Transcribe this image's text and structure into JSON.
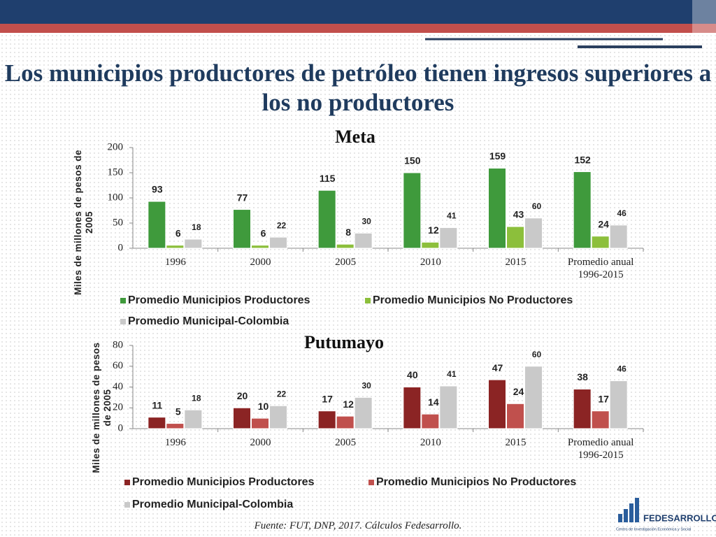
{
  "title": "Los municipios productores de petróleo tienen ingresos superiores a los no productores",
  "source": "Fuente: FUT, DNP, 2017. Cálculos Fedesarrollo.",
  "logo": {
    "name": "FEDESARROLLO",
    "tagline": "Centro de Investigación Económica y Social"
  },
  "chart_data": [
    {
      "type": "bar",
      "title": "Meta",
      "y_label": "Miles de millones de pesos de 2005",
      "categories": [
        "1996",
        "2000",
        "2005",
        "2010",
        "2015",
        "Promedio anual 1996-2015"
      ],
      "series": [
        {
          "name": "Promedio Municipios Productores",
          "color": "#3f9a3c",
          "values": [
            93,
            77,
            115,
            150,
            159,
            152
          ]
        },
        {
          "name": "Promedio Municipios No Productores",
          "color": "#8cbf3b",
          "values": [
            6,
            6,
            8,
            12,
            43,
            24
          ]
        },
        {
          "name": "Promedio Municipal-Colombia",
          "color": "#c9c9c9",
          "values": [
            18,
            22,
            30,
            41,
            60,
            46
          ]
        }
      ],
      "ylim": [
        0,
        200
      ],
      "yticks": [
        0,
        50,
        100,
        150,
        200
      ],
      "grid": false,
      "legend": "bottom"
    },
    {
      "type": "bar",
      "title": "Putumayo",
      "y_label": "Miles de millones de pesos de 2005",
      "categories": [
        "1996",
        "2000",
        "2005",
        "2010",
        "2015",
        "Promedio anual 1996-2015"
      ],
      "series": [
        {
          "name": "Promedio Municipios Productores",
          "color": "#8b2424",
          "values": [
            11,
            20,
            17,
            40,
            47,
            38
          ]
        },
        {
          "name": "Promedio Municipios No Productores",
          "color": "#c0504d",
          "values": [
            5,
            10,
            12,
            14,
            24,
            17
          ]
        },
        {
          "name": "Promedio Municipal-Colombia",
          "color": "#c9c9c9",
          "values": [
            18,
            22,
            30,
            41,
            60,
            46
          ]
        }
      ],
      "ylim": [
        0,
        80
      ],
      "yticks": [
        0,
        20,
        40,
        60,
        80
      ],
      "grid": false,
      "legend": "bottom"
    }
  ]
}
